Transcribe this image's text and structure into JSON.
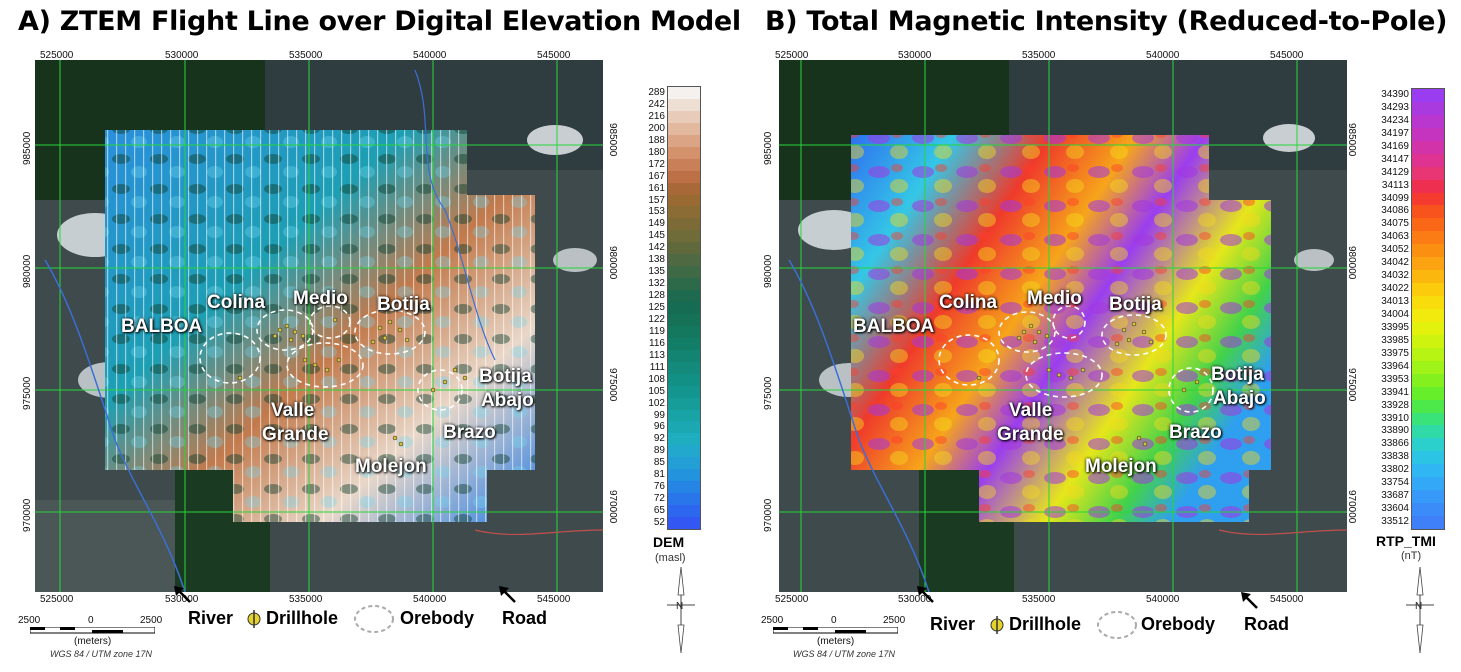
{
  "panel_a": {
    "title": "A) ZTEM Flight Line over Digital Elevation Model",
    "colorbar_title": "DEM",
    "colorbar_unit": "(masl)",
    "colorbar_values": [
      "289",
      "242",
      "216",
      "200",
      "188",
      "180",
      "172",
      "167",
      "161",
      "157",
      "153",
      "149",
      "145",
      "142",
      "138",
      "135",
      "132",
      "128",
      "125",
      "122",
      "119",
      "116",
      "113",
      "111",
      "108",
      "105",
      "102",
      "99",
      "96",
      "92",
      "89",
      "85",
      "81",
      "76",
      "72",
      "65",
      "52"
    ],
    "colorbar_colors": [
      "#f4f1ee",
      "#eedfd4",
      "#e8cbb8",
      "#e2b89e",
      "#dba485",
      "#d3926c",
      "#c98058",
      "#bd7046",
      "#a96837",
      "#9a6a33",
      "#8a6c34",
      "#7c6b36",
      "#6f6c3a",
      "#60693c",
      "#4f6a42",
      "#3e6a46",
      "#2d6a4a",
      "#1e6a4e",
      "#156c52",
      "#157257",
      "#14785e",
      "#137e68",
      "#138472",
      "#138a7c",
      "#139086",
      "#149690",
      "#169d9a",
      "#18a3a6",
      "#1ba8b3",
      "#1fadc0",
      "#22a8cc",
      "#239fd6",
      "#2493de",
      "#2685e4",
      "#2976ea",
      "#2d66ef",
      "#3257f2"
    ],
    "labels": {
      "balboa": "BALBOA",
      "colina": "Colina",
      "medio": "Medio",
      "botija": "Botija",
      "valle": "Valle",
      "grande": "Grande",
      "brazo": "Brazo",
      "molejon": "Molejon",
      "botija2": "Botija",
      "abajo": "Abajo"
    },
    "x_ticks": [
      "525000",
      "530000",
      "535000",
      "540000",
      "545000"
    ],
    "y_ticks_left": [
      "985000",
      "980000",
      "975000",
      "970000"
    ],
    "y_ticks_right": [
      "985000",
      "980000",
      "975000",
      "970000"
    ],
    "scale": {
      "left": "2500",
      "mid": "0",
      "right": "2500",
      "unit": "(meters)",
      "crs": "WGS 84 / UTM zone 17N"
    },
    "legend": {
      "river": "River",
      "drillhole": "Drillhole",
      "orebody": "Orebody",
      "road": "Road"
    }
  },
  "panel_b": {
    "title": "B) Total Magnetic Intensity (Reduced-to-Pole)",
    "colorbar_title": "RTP_TMI",
    "colorbar_unit": "(nT)",
    "colorbar_values": [
      "34390",
      "34293",
      "34234",
      "34197",
      "34169",
      "34147",
      "34129",
      "34113",
      "34099",
      "34086",
      "34075",
      "34063",
      "34052",
      "34042",
      "34032",
      "34022",
      "34013",
      "34004",
      "33995",
      "33985",
      "33975",
      "33964",
      "33953",
      "33941",
      "33928",
      "33910",
      "33890",
      "33866",
      "33838",
      "33802",
      "33754",
      "33687",
      "33604",
      "33512"
    ],
    "colorbar_colors": [
      "#9a3df0",
      "#a93ae0",
      "#b937cf",
      "#c534be",
      "#d233a9",
      "#de3390",
      "#e83574",
      "#ef2f4f",
      "#f53a2f",
      "#f8521d",
      "#fa6717",
      "#fb7b14",
      "#fb8f12",
      "#fba310",
      "#fbb70e",
      "#fbcb0c",
      "#f9dc0b",
      "#f2ea0c",
      "#e3f20d",
      "#cef30f",
      "#b8f413",
      "#a0f318",
      "#84f11f",
      "#67ee2a",
      "#4de94a",
      "#3ae27a",
      "#2fdaa7",
      "#2bd0cc",
      "#2cc4e5",
      "#2fb6f3",
      "#33a8f7",
      "#3799f8",
      "#3b8bf8",
      "#3f7ff7"
    ],
    "labels": {
      "balboa": "BALBOA",
      "colina": "Colina",
      "medio": "Medio",
      "botija": "Botija",
      "valle": "Valle",
      "grande": "Grande",
      "brazo": "Brazo",
      "molejon": "Molejon",
      "botija2": "Botija",
      "abajo": "Abajo"
    },
    "x_ticks": [
      "525000",
      "530000",
      "535000",
      "540000",
      "545000"
    ],
    "y_ticks_left": [
      "985000",
      "980000",
      "975000",
      "970000"
    ],
    "y_ticks_right": [
      "985000",
      "980000",
      "975000",
      "970000"
    ],
    "scale": {
      "left": "2500",
      "mid": "0",
      "right": "2500",
      "unit": "(meters)",
      "crs": "WGS 84 / UTM zone 17N"
    },
    "legend": {
      "river": "River",
      "drillhole": "Drillhole",
      "orebody": "Orebody",
      "road": "Road"
    }
  },
  "north_symbol": "N"
}
